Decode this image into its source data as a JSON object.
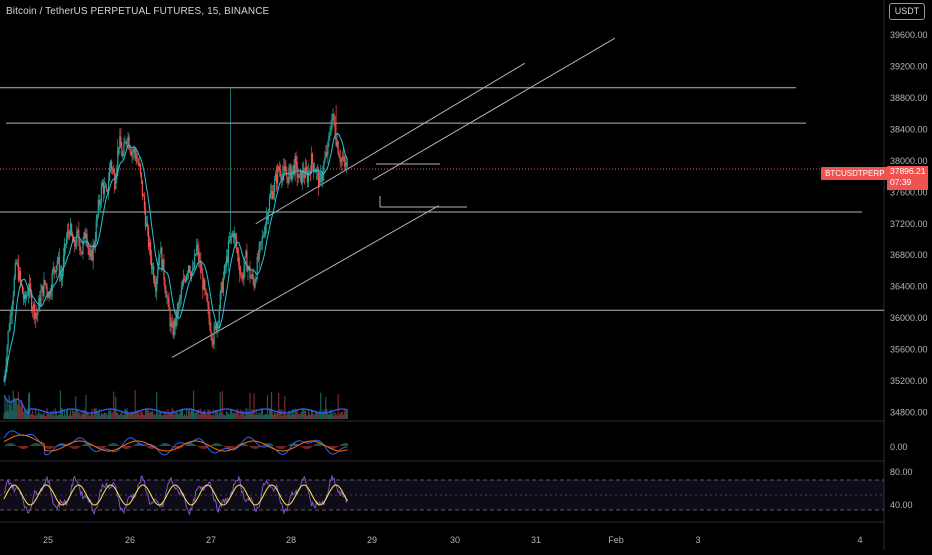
{
  "header": {
    "title": "Bitcoin / TetherUS PERPETUAL FUTURES, 15, BINANCE",
    "currency": "USDT"
  },
  "price_axis": {
    "ticks": [
      "39600.00",
      "39200.00",
      "38800.00",
      "38400.00",
      "38000.00",
      "37600.00",
      "37200.00",
      "36800.00",
      "36400.00",
      "36000.00",
      "35600.00",
      "35200.00",
      "34800.00"
    ]
  },
  "macd_axis": {
    "ticks": [
      "0.00"
    ]
  },
  "rsi_axis": {
    "ticks": [
      "80.00",
      "40.00"
    ]
  },
  "time_axis": {
    "ticks": [
      "25",
      "26",
      "27",
      "28",
      "29",
      "30",
      "31",
      "Feb",
      "3",
      "4"
    ]
  },
  "last_price": {
    "symbol": "BTCUSDTPERP",
    "value": "37896.21",
    "countdown": "07:39"
  },
  "colors": {
    "up": "#26a69a",
    "down": "#ef5350",
    "sma": "#26c6da",
    "volume_ma": "#2962ff",
    "rsi": "#7e57c2",
    "rsi_ma": "#ffeb3b",
    "macd": "#2962ff",
    "signal": "#ff6d00",
    "lines": "#b2b5be"
  },
  "chart_data": {
    "type": "candlestick",
    "symbol": "BTCUSDTPERP",
    "interval": "15",
    "ylim": [
      34600,
      39900
    ],
    "x_labels": [
      "25",
      "26",
      "27",
      "28",
      "29",
      "30",
      "31",
      "Feb",
      "3",
      "4"
    ],
    "horizontal_levels": [
      38930,
      38480,
      37350,
      36100
    ],
    "trendlines": [
      {
        "from": [
          26.55,
          35500
        ],
        "to": [
          29.8,
          37430
        ]
      },
      {
        "from": [
          27.57,
          37200
        ],
        "to": [
          30.85,
          39240
        ]
      },
      {
        "from": [
          29.0,
          37760
        ],
        "to": [
          31.95,
          39560
        ]
      }
    ],
    "close_path": [
      [
        24.5,
        35200
      ],
      [
        24.55,
        35800
      ],
      [
        24.6,
        36250
      ],
      [
        24.65,
        36700
      ],
      [
        24.7,
        36450
      ],
      [
        24.75,
        36200
      ],
      [
        24.8,
        36400
      ],
      [
        24.85,
        36150
      ],
      [
        24.9,
        36050
      ],
      [
        24.95,
        36300
      ],
      [
        25.0,
        36450
      ],
      [
        25.05,
        36300
      ],
      [
        25.1,
        36600
      ],
      [
        25.15,
        36750
      ],
      [
        25.2,
        36500
      ],
      [
        25.25,
        36950
      ],
      [
        25.3,
        37150
      ],
      [
        25.35,
        36900
      ],
      [
        25.4,
        37050
      ],
      [
        25.45,
        36850
      ],
      [
        25.5,
        37150
      ],
      [
        25.55,
        36700
      ],
      [
        25.6,
        36950
      ],
      [
        25.65,
        37400
      ],
      [
        25.7,
        37700
      ],
      [
        25.75,
        37550
      ],
      [
        25.8,
        38000
      ],
      [
        25.85,
        37750
      ],
      [
        25.9,
        38250
      ],
      [
        25.95,
        38050
      ],
      [
        26.0,
        38350
      ],
      [
        26.05,
        38150
      ],
      [
        26.1,
        38100
      ],
      [
        26.15,
        37900
      ],
      [
        26.2,
        37500
      ],
      [
        26.25,
        37050
      ],
      [
        26.3,
        36700
      ],
      [
        26.35,
        36450
      ],
      [
        26.4,
        36900
      ],
      [
        26.45,
        36550
      ],
      [
        26.5,
        36150
      ],
      [
        26.55,
        35800
      ],
      [
        26.6,
        36000
      ],
      [
        26.65,
        36250
      ],
      [
        26.7,
        36500
      ],
      [
        26.75,
        36700
      ],
      [
        26.8,
        36550
      ],
      [
        26.85,
        36900
      ],
      [
        26.9,
        36600
      ],
      [
        26.95,
        36300
      ],
      [
        27.0,
        36000
      ],
      [
        27.05,
        35750
      ],
      [
        27.1,
        35950
      ],
      [
        27.15,
        36350
      ],
      [
        27.2,
        36650
      ],
      [
        27.25,
        36950
      ],
      [
        27.3,
        37100
      ],
      [
        27.35,
        36800
      ],
      [
        27.4,
        36500
      ],
      [
        27.45,
        36750
      ],
      [
        27.5,
        36550
      ],
      [
        27.55,
        36450
      ],
      [
        27.6,
        36750
      ],
      [
        27.65,
        37000
      ],
      [
        27.7,
        37300
      ],
      [
        27.75,
        37550
      ],
      [
        27.8,
        37700
      ],
      [
        27.85,
        37900
      ],
      [
        27.9,
        37850
      ],
      [
        27.95,
        37800
      ],
      [
        28.0,
        37850
      ],
      [
        28.05,
        37950
      ],
      [
        28.1,
        37750
      ],
      [
        28.15,
        37850
      ],
      [
        28.2,
        37800
      ],
      [
        28.25,
        38000
      ],
      [
        28.3,
        37900
      ],
      [
        28.35,
        37700
      ],
      [
        28.4,
        37950
      ],
      [
        28.45,
        38150
      ],
      [
        28.5,
        38600
      ],
      [
        28.55,
        38300
      ],
      [
        28.6,
        38050
      ],
      [
        28.65,
        37950
      ],
      [
        28.7,
        37900
      ]
    ],
    "volume_ma_level": "low",
    "rsi_band": [
      30,
      70
    ],
    "last": 37896.21
  }
}
